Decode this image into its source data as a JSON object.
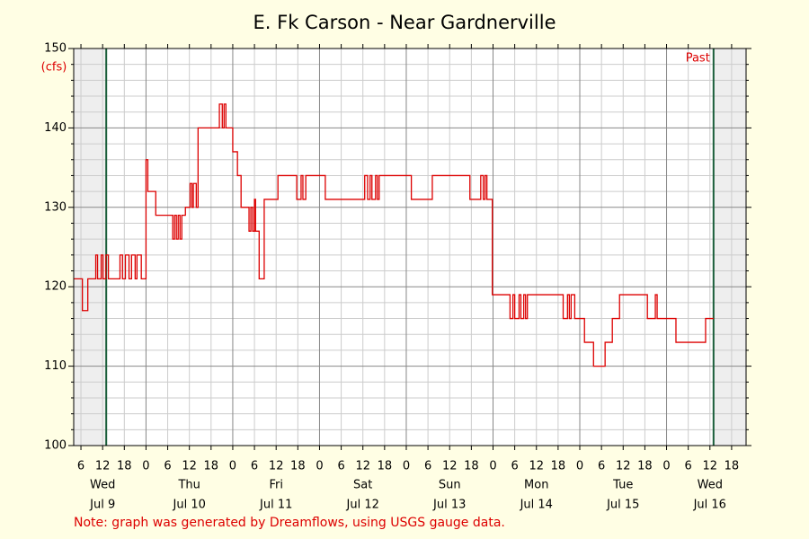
{
  "chart_data": {
    "type": "line",
    "step": true,
    "title": "E. Fk Carson - Near Gardnerville",
    "y_label": "(cfs)",
    "annotation": "Past",
    "note": "Note: graph was generated by Dreamflows, using USGS gauge data.",
    "xlim": [
      4,
      190
    ],
    "ylim": [
      100,
      150
    ],
    "yticks": [
      100,
      110,
      120,
      130,
      140,
      150
    ],
    "yminorticks": [
      102,
      104,
      106,
      108,
      112,
      114,
      116,
      118,
      122,
      124,
      126,
      128,
      132,
      134,
      136,
      138,
      142,
      144,
      146,
      148
    ],
    "xticks": [
      6,
      12,
      18,
      {
        "value": 24,
        "label": "0"
      },
      {
        "value": 30,
        "label": "6"
      },
      {
        "value": 36,
        "label": "12"
      },
      {
        "value": 42,
        "label": "18"
      },
      {
        "value": 48,
        "label": "0"
      },
      {
        "value": 54,
        "label": "6"
      },
      {
        "value": 60,
        "label": "12"
      },
      {
        "value": 66,
        "label": "18"
      },
      {
        "value": 72,
        "label": "0"
      },
      {
        "value": 78,
        "label": "6"
      },
      {
        "value": 84,
        "label": "12"
      },
      {
        "value": 90,
        "label": "18"
      },
      {
        "value": 96,
        "label": "0"
      },
      {
        "value": 102,
        "label": "6"
      },
      {
        "value": 108,
        "label": "12"
      },
      {
        "value": 114,
        "label": "18"
      },
      {
        "value": 120,
        "label": "0"
      },
      {
        "value": 126,
        "label": "6"
      },
      {
        "value": 132,
        "label": "12"
      },
      {
        "value": 138,
        "label": "18"
      },
      {
        "value": 144,
        "label": "0"
      },
      {
        "value": 150,
        "label": "6"
      },
      {
        "value": 156,
        "label": "12"
      },
      {
        "value": 162,
        "label": "18"
      },
      {
        "value": 168,
        "label": "0"
      },
      {
        "value": 174,
        "label": "6"
      },
      {
        "value": 180,
        "label": "12"
      },
      {
        "value": 186,
        "label": "18"
      }
    ],
    "day_labels": [
      {
        "value": 12,
        "label": "Wed",
        "date": "Jul 9"
      },
      {
        "value": 36,
        "label": "Thu",
        "date": "Jul 10"
      },
      {
        "value": 60,
        "label": "Fri",
        "date": "Jul 11"
      },
      {
        "value": 84,
        "label": "Sat",
        "date": "Jul 12"
      },
      {
        "value": 108,
        "label": "Sun",
        "date": "Jul 13"
      },
      {
        "value": 132,
        "label": "Mon",
        "date": "Jul 14"
      },
      {
        "value": 156,
        "label": "Tue",
        "date": "Jul 15"
      },
      {
        "value": 180,
        "label": "Wed",
        "date": "Jul 16"
      }
    ],
    "vlines": [
      13,
      181
    ],
    "grid": true,
    "series": [
      {
        "color": "#dd0000",
        "x": [
          4.1,
          6.4,
          7.9,
          10.1,
          10.6,
          11.6,
          12.1,
          12.9,
          13.6,
          16.8,
          17.5,
          18.3,
          19.3,
          20,
          21,
          21.5,
          22.7,
          24,
          24.5,
          26.7,
          31.4,
          31.9,
          32.4,
          32.9,
          33.4,
          33.9,
          34.9,
          36.2,
          36.7,
          37.1,
          37.9,
          38.4,
          44.3,
          45.1,
          45.6,
          46.1,
          48,
          49.3,
          50.3,
          52.5,
          53,
          53.5,
          54,
          54.3,
          55.3,
          56.7,
          60.5,
          65.7,
          66.9,
          67.4,
          68.2,
          73.6,
          84.5,
          85.3,
          86,
          86.5,
          87.5,
          88,
          88.5,
          97.4,
          103.2,
          113.6,
          116.6,
          117.3,
          117.8,
          118.3,
          119.8,
          124.7,
          125.5,
          126,
          127.2,
          127.7,
          128.5,
          129,
          129.5,
          139.4,
          140.6,
          141.1,
          141.6,
          142.6,
          145.3,
          147.8,
          151,
          153,
          155,
          162.7,
          164.9,
          165.4,
          170.6,
          178.8,
          181
        ],
        "values": [
          121,
          117,
          121,
          124,
          121,
          124,
          121,
          124,
          121,
          124,
          121,
          124,
          121,
          124,
          121,
          124,
          121,
          136,
          132,
          129,
          126,
          129,
          126,
          129,
          126,
          129,
          130,
          133,
          130,
          133,
          130,
          140,
          143,
          140,
          143,
          140,
          137,
          134,
          130,
          127,
          130,
          127,
          131,
          127,
          121,
          131,
          134,
          131,
          134,
          131,
          134,
          131,
          134,
          131,
          134,
          131,
          134,
          131,
          134,
          131,
          134,
          131,
          134,
          131,
          134,
          131,
          119,
          116,
          119,
          116,
          119,
          116,
          119,
          116,
          119,
          116,
          119,
          116,
          119,
          116,
          113,
          110,
          113,
          116,
          119,
          116,
          119,
          116,
          113,
          116,
          116
        ]
      }
    ]
  }
}
